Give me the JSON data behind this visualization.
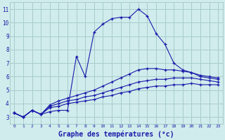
{
  "title": "Graphe des températures (°c)",
  "bg_color": "#d0ecec",
  "grid_color": "#a8cccc",
  "line_color": "#1a1aaa",
  "xlim": [
    -0.5,
    23.5
  ],
  "ylim": [
    2.5,
    11.5
  ],
  "xticks": [
    0,
    1,
    2,
    3,
    4,
    5,
    6,
    7,
    8,
    9,
    10,
    11,
    12,
    13,
    14,
    15,
    16,
    17,
    18,
    19,
    20,
    21,
    22,
    23
  ],
  "yticks": [
    3,
    4,
    5,
    6,
    7,
    8,
    9,
    10,
    11
  ],
  "hours": [
    0,
    1,
    2,
    3,
    4,
    5,
    6,
    7,
    8,
    9,
    10,
    11,
    12,
    13,
    14,
    15,
    16,
    17,
    18,
    19,
    20,
    21,
    22,
    23
  ],
  "series1": [
    3.3,
    3.0,
    3.5,
    3.2,
    3.4,
    3.5,
    3.5,
    7.5,
    6.0,
    9.3,
    9.9,
    10.3,
    10.4,
    10.4,
    11.0,
    10.5,
    9.2,
    8.4,
    7.0,
    6.5,
    6.3,
    6.0,
    5.9,
    5.8
  ],
  "series2": [
    3.3,
    3.0,
    3.5,
    3.2,
    3.9,
    4.2,
    4.4,
    4.6,
    4.8,
    5.0,
    5.3,
    5.6,
    5.9,
    6.2,
    6.5,
    6.6,
    6.6,
    6.5,
    6.5,
    6.4,
    6.3,
    6.1,
    6.0,
    5.9
  ],
  "series3": [
    3.3,
    3.0,
    3.5,
    3.2,
    3.8,
    4.0,
    4.2,
    4.3,
    4.5,
    4.6,
    4.8,
    5.0,
    5.2,
    5.4,
    5.6,
    5.7,
    5.8,
    5.8,
    5.9,
    5.9,
    5.9,
    5.8,
    5.7,
    5.6
  ],
  "series4": [
    3.3,
    3.0,
    3.5,
    3.2,
    3.7,
    3.8,
    4.0,
    4.1,
    4.2,
    4.3,
    4.5,
    4.6,
    4.8,
    4.9,
    5.1,
    5.2,
    5.3,
    5.3,
    5.4,
    5.4,
    5.5,
    5.4,
    5.4,
    5.4
  ]
}
